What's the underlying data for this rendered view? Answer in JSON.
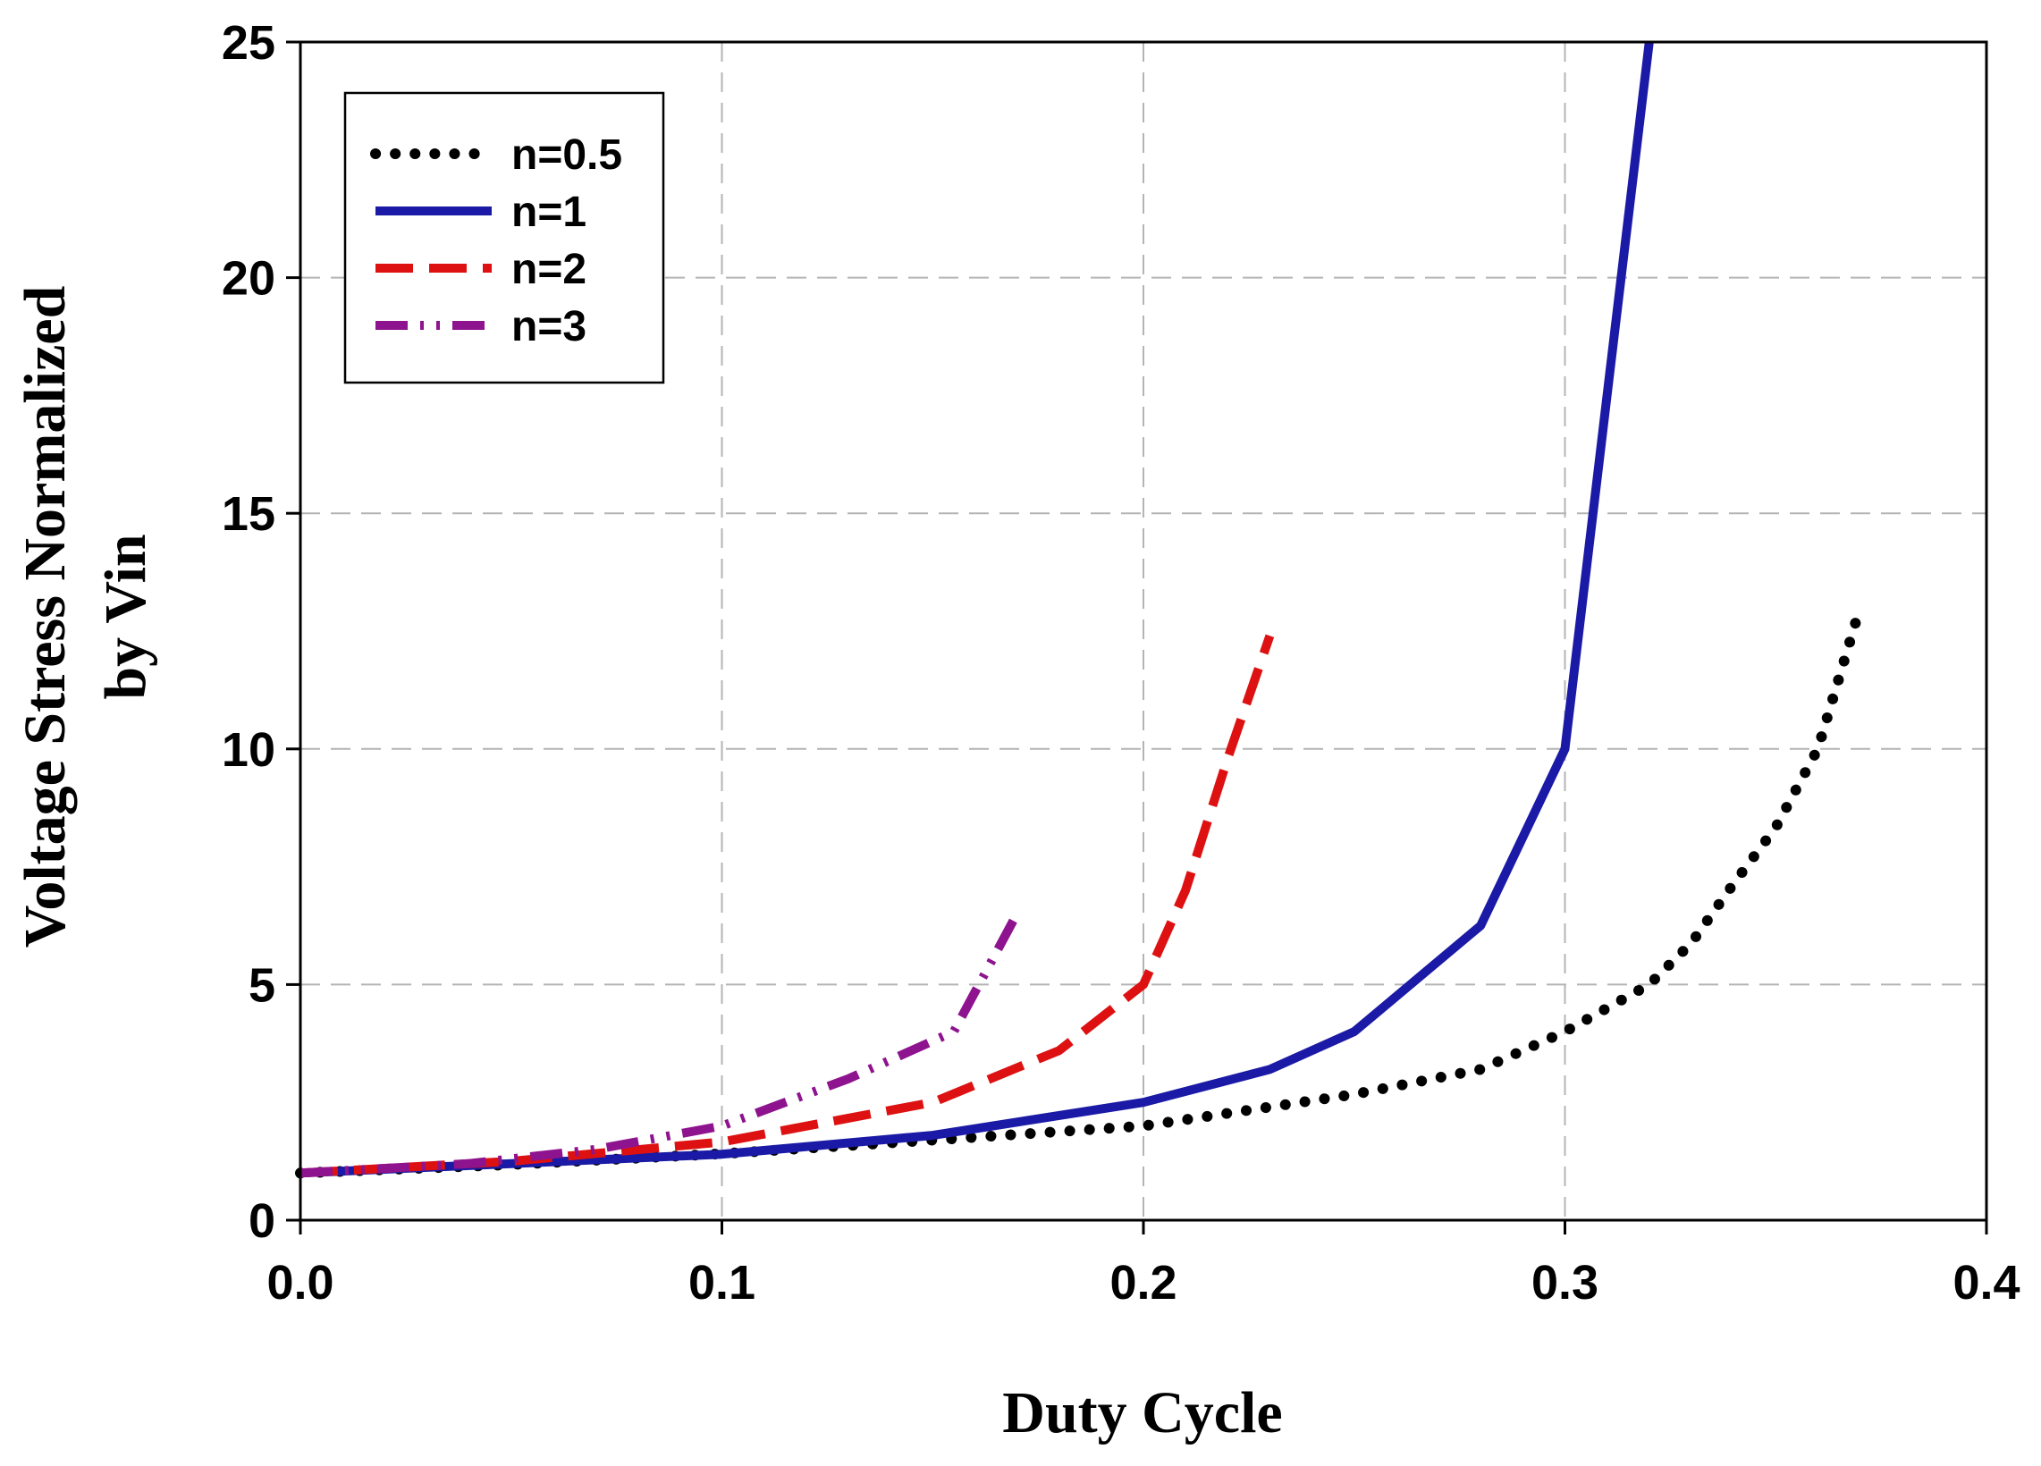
{
  "chart_data": {
    "type": "line",
    "title": "",
    "xlabel": "Duty Cycle",
    "ylabel": [
      "Voltage Stress Normalized",
      "by Vin"
    ],
    "xlim": [
      0.0,
      0.4
    ],
    "ylim": [
      0,
      25
    ],
    "xticks": [
      "0.0",
      "0.1",
      "0.2",
      "0.3",
      "0.4"
    ],
    "yticks": [
      "0",
      "5",
      "10",
      "15",
      "20",
      "25"
    ],
    "grid": true,
    "legend": "top-left",
    "series": [
      {
        "name": "n=0.5",
        "color": "#000000",
        "style": "dotted",
        "x": [
          0.0,
          0.05,
          0.1,
          0.15,
          0.2,
          0.25,
          0.28,
          0.3,
          0.32,
          0.33,
          0.34,
          0.35,
          0.36,
          0.37
        ],
        "y": [
          1.0,
          1.18,
          1.41,
          1.7,
          2.0,
          2.67,
          3.2,
          4.0,
          5.0,
          5.88,
          7.14,
          8.33,
          10.0,
          13.0
        ]
      },
      {
        "name": "n=1",
        "color": "#1a1aa6",
        "style": "solid",
        "x": [
          0.0,
          0.05,
          0.1,
          0.15,
          0.2,
          0.23,
          0.25,
          0.28,
          0.3,
          0.31,
          0.32
        ],
        "y": [
          1.0,
          1.2,
          1.4,
          1.8,
          2.5,
          3.2,
          4.0,
          6.25,
          10.0,
          17.5,
          25.0
        ]
      },
      {
        "name": "n=2",
        "color": "#dd1111",
        "style": "dashed",
        "x": [
          0.0,
          0.05,
          0.1,
          0.15,
          0.18,
          0.2,
          0.21,
          0.22,
          0.23
        ],
        "y": [
          1.0,
          1.25,
          1.66,
          2.5,
          3.6,
          5.0,
          7.0,
          9.8,
          12.4
        ]
      },
      {
        "name": "n=3",
        "color": "#8e138e",
        "style": "dashdotdot",
        "x": [
          0.0,
          0.04,
          0.07,
          0.1,
          0.13,
          0.155,
          0.17
        ],
        "y": [
          1.0,
          1.2,
          1.5,
          2.0,
          3.0,
          4.0,
          6.5
        ]
      }
    ]
  }
}
